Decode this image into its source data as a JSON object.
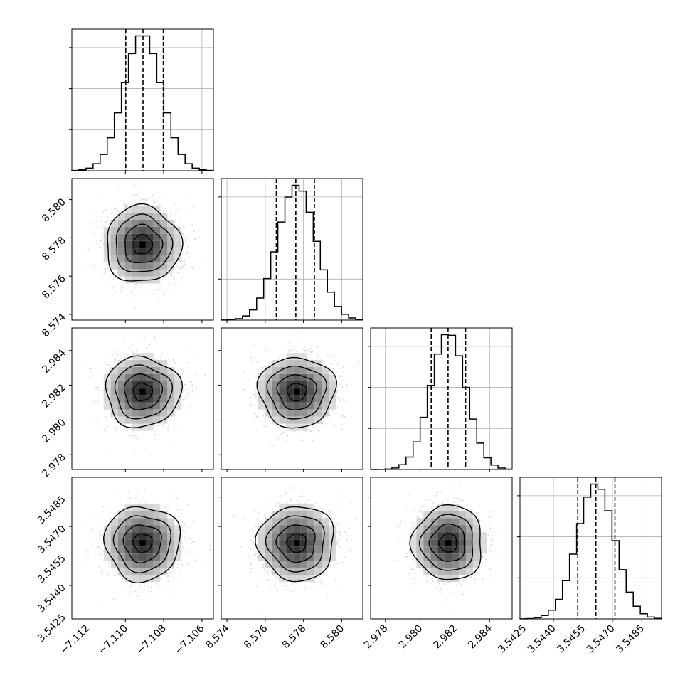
{
  "chart_data": {
    "type": "corner",
    "grid": true,
    "quantile_lines": "dashed",
    "colors": {
      "ink": "#000000",
      "grid": "#b0b0b0",
      "samples": "#bdbdbd"
    },
    "parameters": [
      {
        "range": [
          -7.1128,
          -7.1054
        ],
        "ticks": [
          "-7.112",
          "-7.110",
          "-7.108",
          "-7.106"
        ],
        "tick_values": [
          -7.112,
          -7.11,
          -7.108,
          -7.106
        ],
        "mean": -7.1091,
        "sigma": 0.00098,
        "quantiles": [
          -7.10998,
          -7.10908,
          -7.10802
        ]
      },
      {
        "range": [
          8.5737,
          8.5811
        ],
        "ticks": [
          "8.574",
          "8.576",
          "8.578",
          "8.580"
        ],
        "tick_values": [
          8.574,
          8.576,
          8.578,
          8.58
        ],
        "mean": 8.57765,
        "sigma": 0.001,
        "quantiles": [
          8.57658,
          8.5776,
          8.57857
        ]
      },
      {
        "range": [
          2.97715,
          2.9853
        ],
        "ticks": [
          "2.978",
          "2.980",
          "2.982",
          "2.984"
        ],
        "tick_values": [
          2.978,
          2.98,
          2.982,
          2.984
        ],
        "mean": 2.98162,
        "sigma": 0.00101,
        "quantiles": [
          2.98064,
          2.98161,
          2.98262
        ]
      },
      {
        "range": [
          3.5423,
          3.5495
        ],
        "ticks": [
          "3.5425",
          "3.5440",
          "3.5455",
          "3.5470",
          "3.5485"
        ],
        "tick_values": [
          3.5425,
          3.544,
          3.5455,
          3.547,
          3.5485
        ],
        "mean": 3.54616,
        "sigma": 0.00095,
        "quantiles": [
          3.54524,
          3.54616,
          3.54713
        ]
      }
    ]
  }
}
